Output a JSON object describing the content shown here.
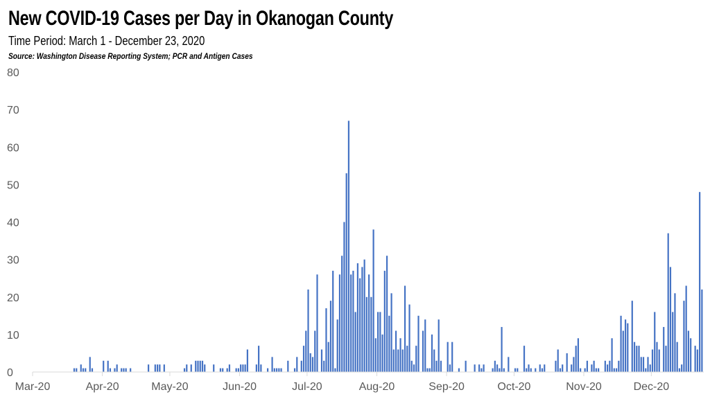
{
  "chart_data": {
    "type": "bar",
    "title": "New COVID-19 Cases per Day in Okanogan County",
    "subtitle": "Time Period: March 1 - December 23, 2020",
    "source": "Source: Washington Disease Reporting System; PCR and Antigen Cases",
    "xlabel": "",
    "ylabel": "",
    "ylim": [
      0,
      80
    ],
    "y_ticks": [
      "0",
      "10",
      "20",
      "30",
      "40",
      "50",
      "60",
      "70",
      "80"
    ],
    "grid": false,
    "legend": "none",
    "bar_color": "#4472C4",
    "months": [
      {
        "label": "Mar-20",
        "values": [
          0,
          0,
          0,
          0,
          0,
          0,
          0,
          0,
          0,
          0,
          0,
          0,
          0,
          0,
          0,
          0,
          0,
          0,
          1,
          1,
          0,
          2,
          1,
          1,
          0,
          4,
          1,
          0,
          0,
          0,
          0
        ]
      },
      {
        "label": "Apr-20",
        "values": [
          3,
          0,
          3,
          1,
          0,
          1,
          2,
          0,
          1,
          1,
          1,
          0,
          1,
          0,
          0,
          0,
          0,
          0,
          0,
          0,
          2,
          0,
          0,
          2,
          2,
          2,
          0,
          2,
          0,
          0
        ]
      },
      {
        "label": "May-20",
        "values": [
          0,
          0,
          0,
          0,
          0,
          0,
          1,
          2,
          0,
          2,
          0,
          3,
          3,
          3,
          3,
          2,
          0,
          0,
          0,
          2,
          0,
          0,
          1,
          1,
          0,
          1,
          2,
          0,
          0,
          1,
          1
        ]
      },
      {
        "label": "Jun-20",
        "values": [
          2,
          2,
          2,
          6,
          0,
          0,
          0,
          2,
          7,
          2,
          0,
          0,
          1,
          0,
          4,
          1,
          1,
          1,
          1,
          0,
          0,
          3,
          0,
          0,
          1,
          4,
          0,
          3,
          7,
          11
        ]
      },
      {
        "label": "Jul-20",
        "values": [
          22,
          5,
          4,
          11,
          26,
          0,
          6,
          3,
          17,
          8,
          19,
          27,
          1,
          14,
          26,
          31,
          40,
          53,
          67,
          26,
          27,
          16,
          29,
          25,
          28,
          30,
          20,
          26,
          20,
          38,
          9
        ]
      },
      {
        "label": "Aug-20",
        "values": [
          16,
          16,
          10,
          27,
          31,
          15,
          21,
          6,
          11,
          6,
          9,
          6,
          23,
          7,
          18,
          3,
          2,
          7,
          15,
          0,
          11,
          14,
          1,
          1,
          10,
          6,
          3,
          14,
          3,
          0,
          0
        ]
      },
      {
        "label": "Sep-20",
        "values": [
          8,
          2,
          8,
          0,
          0,
          1,
          0,
          0,
          3,
          0,
          0,
          0,
          2,
          0,
          2,
          1,
          2,
          0,
          0,
          0,
          1,
          3,
          2,
          1,
          12,
          1,
          0,
          4,
          0,
          0
        ]
      },
      {
        "label": "Oct-20",
        "values": [
          1,
          1,
          0,
          0,
          7,
          1,
          2,
          1,
          0,
          1,
          0,
          2,
          1,
          2,
          0,
          0,
          0,
          0,
          3,
          6,
          1,
          2,
          0,
          5,
          0,
          2,
          4,
          7,
          9,
          1,
          0
        ]
      },
      {
        "label": "Nov-20",
        "values": [
          1,
          3,
          0,
          2,
          3,
          1,
          1,
          0,
          0,
          3,
          2,
          3,
          9,
          1,
          1,
          3,
          15,
          11,
          14,
          13,
          0,
          19,
          8,
          7,
          7,
          4,
          4,
          1,
          4,
          2
        ]
      },
      {
        "label": "Dec-20",
        "values": [
          6,
          16,
          8,
          6,
          0,
          12,
          7,
          37,
          28,
          16,
          21,
          8,
          1,
          2,
          19,
          23,
          11,
          9,
          0,
          7,
          6,
          48,
          22
        ]
      }
    ]
  }
}
